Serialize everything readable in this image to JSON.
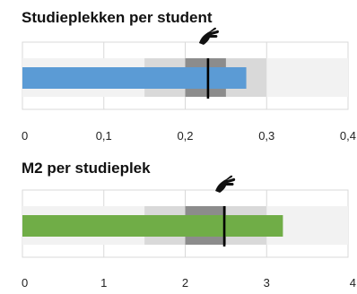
{
  "chart_data": [
    {
      "type": "bullet",
      "title": "Studieplekken per student",
      "xlim": [
        0,
        0.4
      ],
      "ticks": [
        0,
        0.1,
        0.2,
        0.3,
        0.4
      ],
      "tick_labels": [
        "0",
        "0,1",
        "0,2",
        "0,3",
        "0,4"
      ],
      "bands": [
        {
          "from": 0,
          "to": 0.4,
          "color": "#f2f2f2"
        },
        {
          "from": 0.15,
          "to": 0.3,
          "color": "#d9d9d9"
        },
        {
          "from": 0.2,
          "to": 0.25,
          "color": "#8c8c8c"
        }
      ],
      "value": 0.275,
      "bar_color": "#5b9bd5",
      "target": 0.228,
      "marker_icon": "hand-icon",
      "grid": true
    },
    {
      "type": "bullet",
      "title": "M2 per studieplek",
      "xlim": [
        0,
        4
      ],
      "ticks": [
        0,
        1,
        2,
        3,
        4
      ],
      "tick_labels": [
        "0",
        "1",
        "2",
        "3",
        "4"
      ],
      "bands": [
        {
          "from": 0,
          "to": 4,
          "color": "#f2f2f2"
        },
        {
          "from": 1.5,
          "to": 3,
          "color": "#d9d9d9"
        },
        {
          "from": 2,
          "to": 2.5,
          "color": "#8c8c8c"
        }
      ],
      "value": 3.2,
      "bar_color": "#70ad47",
      "target": 2.48,
      "marker_icon": "hand-icon",
      "grid": true
    }
  ]
}
